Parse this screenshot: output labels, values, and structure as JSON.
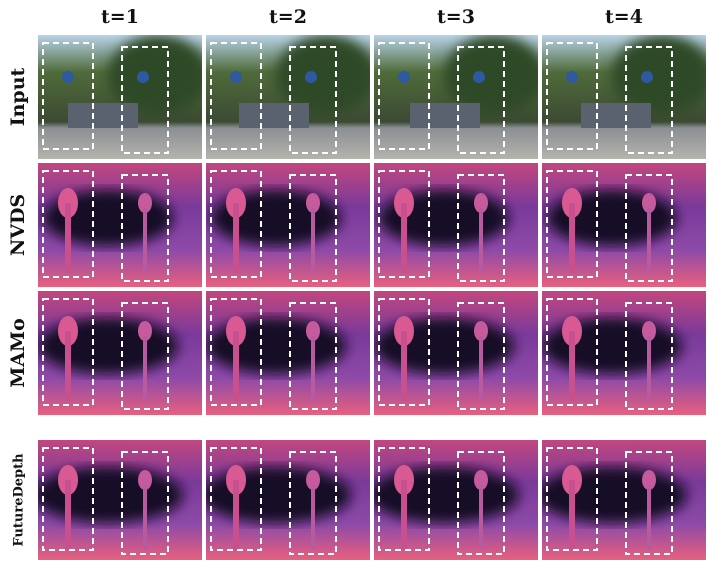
{
  "columns": [
    "t=1",
    "t=2",
    "t=3",
    "t=4"
  ],
  "rows": [
    "Input",
    "NVDS",
    "MAMo",
    "FutureDepth"
  ]
}
